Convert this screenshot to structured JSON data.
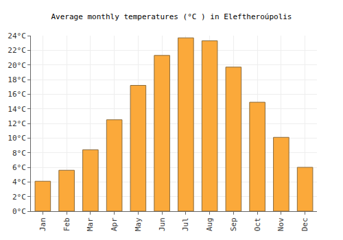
{
  "chart_data": {
    "type": "bar",
    "title": "Average monthly temperatures (°C ) in Eleftheroúpolis",
    "categories": [
      "Jan",
      "Feb",
      "Mar",
      "Apr",
      "May",
      "Jun",
      "Jul",
      "Aug",
      "Sep",
      "Oct",
      "Nov",
      "Dec"
    ],
    "values": [
      4.1,
      5.6,
      8.4,
      12.5,
      17.2,
      21.3,
      23.7,
      23.3,
      19.7,
      14.9,
      10.1,
      6.0
    ],
    "color": "#fba93a",
    "ylim": [
      0,
      24
    ],
    "yticks": [
      {
        "value": 0,
        "label": "0°C"
      },
      {
        "value": 2,
        "label": "2°C"
      },
      {
        "value": 4,
        "label": "4°C"
      },
      {
        "value": 6,
        "label": "6°C"
      },
      {
        "value": 8,
        "label": "8°C"
      },
      {
        "value": 10,
        "label": "10°C"
      },
      {
        "value": 12,
        "label": "12°C"
      },
      {
        "value": 14,
        "label": "14°C"
      },
      {
        "value": 16,
        "label": "16°C"
      },
      {
        "value": 18,
        "label": "18°C"
      },
      {
        "value": 20,
        "label": "20°C"
      },
      {
        "value": 22,
        "label": "22°C"
      },
      {
        "value": 24,
        "label": "24°C"
      }
    ],
    "grid": true
  }
}
